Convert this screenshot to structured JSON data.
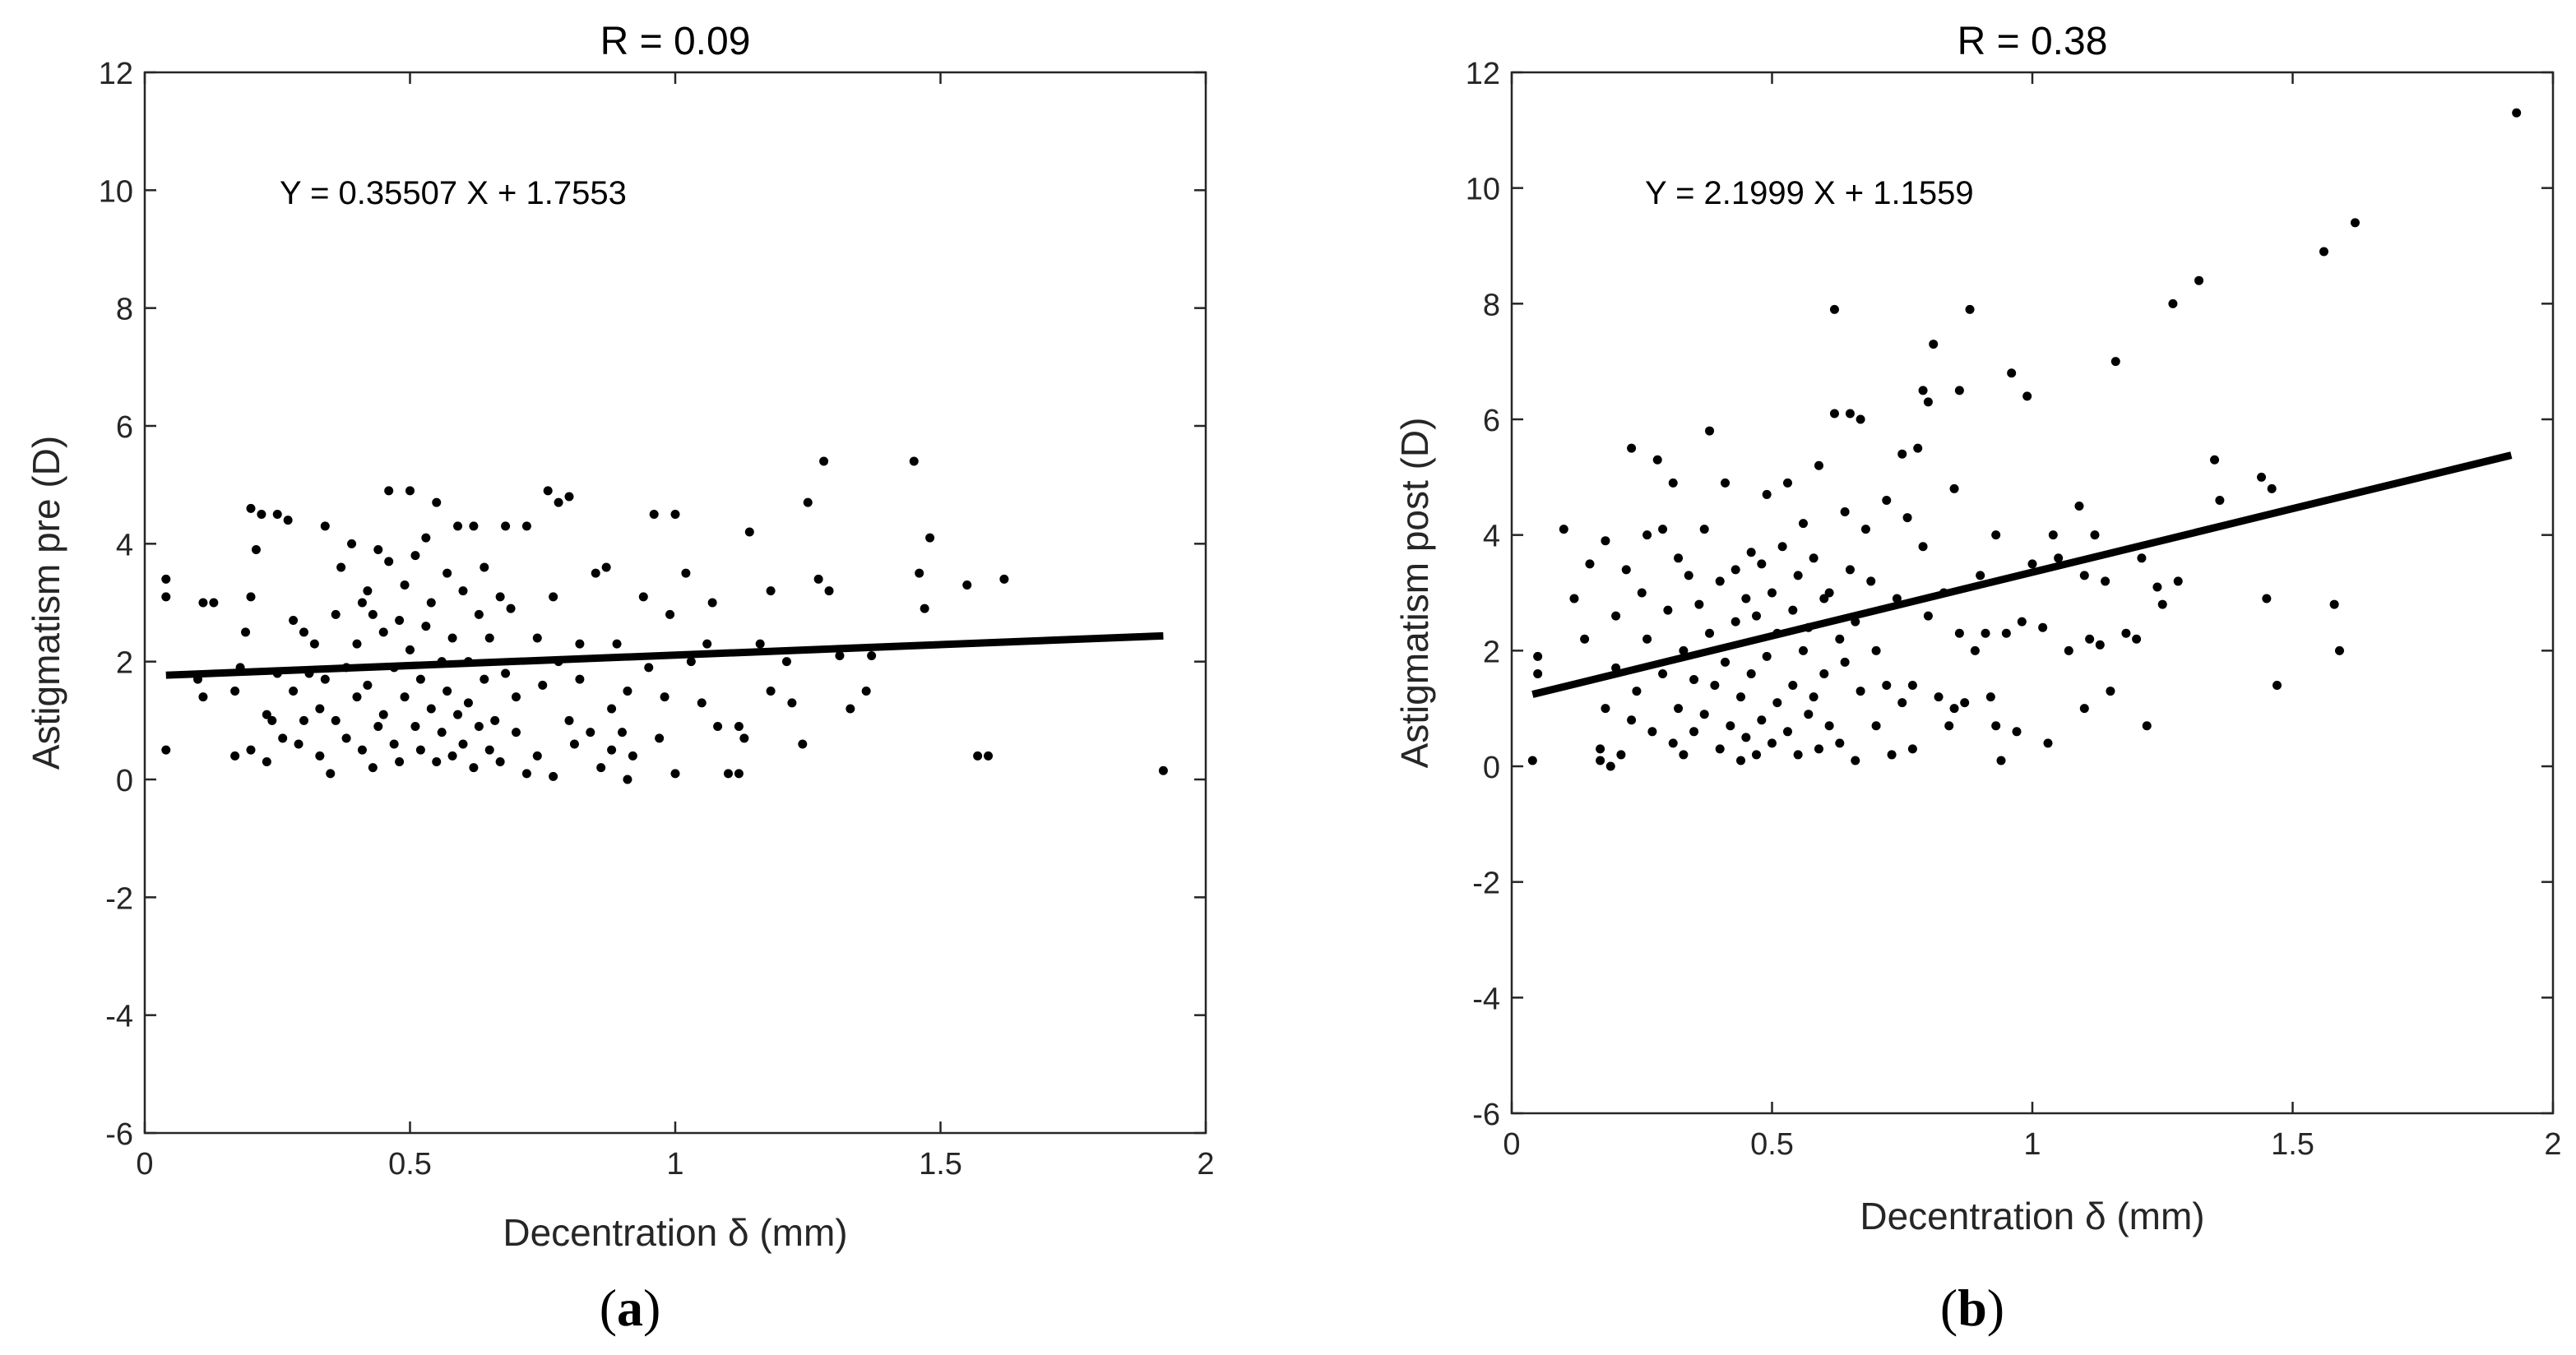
{
  "chart_data": [
    {
      "type": "scatter",
      "panel_label": {
        "open": "(",
        "letter": "a",
        "close": ")"
      },
      "title": "R = 0.09",
      "xlabel": "Decentration δ (mm)",
      "ylabel": "Astigmatism pre (D)",
      "xlim": [
        0,
        2
      ],
      "ylim": [
        -6,
        12
      ],
      "xticks": [
        0,
        0.5,
        1,
        1.5,
        2
      ],
      "xtick_labels": [
        "0",
        "0.5",
        "1",
        "1.5",
        "2"
      ],
      "yticks": [
        -6,
        -4,
        -2,
        0,
        2,
        4,
        6,
        8,
        10,
        12
      ],
      "ytick_labels": [
        "-6",
        "-4",
        "-2",
        "0",
        "2",
        "4",
        "6",
        "8",
        "10",
        "12"
      ],
      "grid": false,
      "annotation": "Y = 0.35507 X + 1.7553",
      "fit": {
        "slope": 0.35507,
        "intercept": 1.7553,
        "x_range": [
          0.04,
          1.92
        ]
      },
      "points": [
        [
          0.04,
          3.4
        ],
        [
          0.04,
          3.1
        ],
        [
          0.04,
          0.5
        ],
        [
          0.1,
          1.7
        ],
        [
          0.11,
          1.4
        ],
        [
          0.11,
          3.0
        ],
        [
          0.13,
          3.0
        ],
        [
          0.17,
          1.5
        ],
        [
          0.17,
          0.4
        ],
        [
          0.18,
          1.9
        ],
        [
          0.19,
          2.5
        ],
        [
          0.2,
          3.1
        ],
        [
          0.2,
          4.6
        ],
        [
          0.2,
          0.5
        ],
        [
          0.21,
          3.9
        ],
        [
          0.22,
          4.5
        ],
        [
          0.23,
          1.1
        ],
        [
          0.23,
          0.3
        ],
        [
          0.24,
          1.0
        ],
        [
          0.25,
          4.5
        ],
        [
          0.25,
          1.8
        ],
        [
          0.26,
          0.7
        ],
        [
          0.27,
          4.4
        ],
        [
          0.28,
          2.7
        ],
        [
          0.28,
          1.5
        ],
        [
          0.29,
          0.6
        ],
        [
          0.3,
          1.0
        ],
        [
          0.3,
          2.5
        ],
        [
          0.31,
          1.8
        ],
        [
          0.32,
          2.3
        ],
        [
          0.33,
          1.2
        ],
        [
          0.33,
          0.4
        ],
        [
          0.34,
          4.3
        ],
        [
          0.34,
          1.7
        ],
        [
          0.35,
          0.1
        ],
        [
          0.36,
          2.8
        ],
        [
          0.36,
          1.0
        ],
        [
          0.37,
          3.6
        ],
        [
          0.38,
          1.9
        ],
        [
          0.38,
          0.7
        ],
        [
          0.39,
          4.0
        ],
        [
          0.4,
          2.3
        ],
        [
          0.4,
          1.4
        ],
        [
          0.41,
          3.0
        ],
        [
          0.41,
          0.5
        ],
        [
          0.42,
          3.2
        ],
        [
          0.42,
          1.6
        ],
        [
          0.43,
          2.8
        ],
        [
          0.43,
          0.2
        ],
        [
          0.44,
          0.9
        ],
        [
          0.44,
          3.9
        ],
        [
          0.45,
          2.5
        ],
        [
          0.45,
          1.1
        ],
        [
          0.46,
          4.9
        ],
        [
          0.46,
          3.7
        ],
        [
          0.47,
          1.9
        ],
        [
          0.47,
          0.6
        ],
        [
          0.48,
          2.7
        ],
        [
          0.48,
          0.3
        ],
        [
          0.49,
          3.3
        ],
        [
          0.49,
          1.4
        ],
        [
          0.5,
          2.2
        ],
        [
          0.5,
          4.9
        ],
        [
          0.51,
          3.8
        ],
        [
          0.51,
          0.9
        ],
        [
          0.52,
          1.7
        ],
        [
          0.52,
          0.5
        ],
        [
          0.53,
          2.6
        ],
        [
          0.53,
          4.1
        ],
        [
          0.54,
          3.0
        ],
        [
          0.54,
          1.2
        ],
        [
          0.55,
          0.3
        ],
        [
          0.55,
          4.7
        ],
        [
          0.56,
          2.0
        ],
        [
          0.56,
          0.8
        ],
        [
          0.57,
          3.5
        ],
        [
          0.57,
          1.5
        ],
        [
          0.58,
          0.4
        ],
        [
          0.58,
          2.4
        ],
        [
          0.59,
          4.3
        ],
        [
          0.59,
          1.1
        ],
        [
          0.6,
          3.2
        ],
        [
          0.6,
          0.6
        ],
        [
          0.61,
          2.0
        ],
        [
          0.61,
          1.3
        ],
        [
          0.62,
          4.3
        ],
        [
          0.62,
          0.2
        ],
        [
          0.63,
          2.8
        ],
        [
          0.63,
          0.9
        ],
        [
          0.64,
          1.7
        ],
        [
          0.64,
          3.6
        ],
        [
          0.65,
          0.5
        ],
        [
          0.65,
          2.4
        ],
        [
          0.66,
          1.0
        ],
        [
          0.67,
          3.1
        ],
        [
          0.67,
          0.3
        ],
        [
          0.68,
          4.3
        ],
        [
          0.68,
          1.8
        ],
        [
          0.69,
          2.9
        ],
        [
          0.7,
          0.8
        ],
        [
          0.7,
          1.4
        ],
        [
          0.72,
          0.1
        ],
        [
          0.72,
          4.3
        ],
        [
          0.74,
          2.4
        ],
        [
          0.74,
          0.4
        ],
        [
          0.75,
          1.6
        ],
        [
          0.76,
          4.9
        ],
        [
          0.77,
          0.05
        ],
        [
          0.77,
          3.1
        ],
        [
          0.78,
          4.7
        ],
        [
          0.78,
          2.0
        ],
        [
          0.8,
          1.0
        ],
        [
          0.8,
          4.8
        ],
        [
          0.81,
          0.6
        ],
        [
          0.82,
          2.3
        ],
        [
          0.82,
          1.7
        ],
        [
          0.84,
          0.8
        ],
        [
          0.85,
          3.5
        ],
        [
          0.86,
          0.2
        ],
        [
          0.87,
          3.6
        ],
        [
          0.88,
          1.2
        ],
        [
          0.88,
          0.5
        ],
        [
          0.89,
          2.3
        ],
        [
          0.9,
          0.8
        ],
        [
          0.91,
          1.5
        ],
        [
          0.91,
          0.0
        ],
        [
          0.92,
          0.4
        ],
        [
          0.94,
          3.1
        ],
        [
          0.95,
          1.9
        ],
        [
          0.96,
          4.5
        ],
        [
          0.97,
          0.7
        ],
        [
          0.98,
          1.4
        ],
        [
          0.99,
          2.8
        ],
        [
          1.0,
          0.1
        ],
        [
          1.0,
          4.5
        ],
        [
          1.02,
          3.5
        ],
        [
          1.03,
          2.0
        ],
        [
          1.05,
          1.3
        ],
        [
          1.06,
          2.3
        ],
        [
          1.07,
          3.0
        ],
        [
          1.08,
          0.9
        ],
        [
          1.1,
          0.1
        ],
        [
          1.12,
          0.9
        ],
        [
          1.12,
          0.1
        ],
        [
          1.13,
          0.7
        ],
        [
          1.14,
          4.2
        ],
        [
          1.16,
          2.3
        ],
        [
          1.18,
          1.5
        ],
        [
          1.18,
          3.2
        ],
        [
          1.21,
          2.0
        ],
        [
          1.22,
          1.3
        ],
        [
          1.24,
          0.6
        ],
        [
          1.25,
          4.7
        ],
        [
          1.27,
          3.4
        ],
        [
          1.28,
          5.4
        ],
        [
          1.29,
          3.2
        ],
        [
          1.31,
          2.1
        ],
        [
          1.33,
          1.2
        ],
        [
          1.36,
          1.5
        ],
        [
          1.37,
          2.1
        ],
        [
          1.45,
          5.4
        ],
        [
          1.46,
          3.5
        ],
        [
          1.47,
          2.9
        ],
        [
          1.48,
          4.1
        ],
        [
          1.55,
          3.3
        ],
        [
          1.57,
          0.4
        ],
        [
          1.59,
          0.4
        ],
        [
          1.62,
          3.4
        ],
        [
          1.92,
          0.15
        ]
      ]
    },
    {
      "type": "scatter",
      "panel_label": {
        "open": "(",
        "letter": "b",
        "close": ")"
      },
      "title": "R = 0.38",
      "xlabel": "Decentration δ (mm)",
      "ylabel": "Astigmatism post (D)",
      "xlim": [
        0,
        2
      ],
      "ylim": [
        -6,
        12
      ],
      "xticks": [
        0,
        0.5,
        1,
        1.5,
        2
      ],
      "xtick_labels": [
        "0",
        "0.5",
        "1",
        "1.5",
        "2"
      ],
      "yticks": [
        -6,
        -4,
        -2,
        0,
        2,
        4,
        6,
        8,
        10,
        12
      ],
      "ytick_labels": [
        "-6",
        "-4",
        "-2",
        "0",
        "2",
        "4",
        "6",
        "8",
        "10",
        "12"
      ],
      "grid": false,
      "annotation": "Y = 2.1999 X + 1.1559",
      "fit": {
        "slope": 2.1999,
        "intercept": 1.1559,
        "x_range": [
          0.04,
          1.92
        ]
      },
      "points": [
        [
          0.04,
          0.1
        ],
        [
          0.05,
          1.6
        ],
        [
          0.05,
          1.9
        ],
        [
          0.1,
          4.1
        ],
        [
          0.12,
          2.9
        ],
        [
          0.14,
          2.2
        ],
        [
          0.15,
          3.5
        ],
        [
          0.17,
          0.1
        ],
        [
          0.17,
          0.3
        ],
        [
          0.18,
          3.9
        ],
        [
          0.18,
          1.0
        ],
        [
          0.19,
          0.0
        ],
        [
          0.2,
          2.6
        ],
        [
          0.2,
          1.7
        ],
        [
          0.21,
          0.2
        ],
        [
          0.22,
          3.4
        ],
        [
          0.23,
          5.5
        ],
        [
          0.23,
          0.8
        ],
        [
          0.24,
          1.3
        ],
        [
          0.25,
          3.0
        ],
        [
          0.26,
          4.0
        ],
        [
          0.26,
          2.2
        ],
        [
          0.27,
          0.6
        ],
        [
          0.28,
          5.3
        ],
        [
          0.29,
          4.1
        ],
        [
          0.29,
          1.6
        ],
        [
          0.3,
          2.7
        ],
        [
          0.31,
          0.4
        ],
        [
          0.31,
          4.9
        ],
        [
          0.32,
          1.0
        ],
        [
          0.32,
          3.6
        ],
        [
          0.33,
          0.2
        ],
        [
          0.33,
          2.0
        ],
        [
          0.34,
          3.3
        ],
        [
          0.35,
          1.5
        ],
        [
          0.35,
          0.6
        ],
        [
          0.36,
          2.8
        ],
        [
          0.37,
          4.1
        ],
        [
          0.37,
          0.9
        ],
        [
          0.38,
          2.3
        ],
        [
          0.38,
          5.8
        ],
        [
          0.39,
          1.4
        ],
        [
          0.4,
          0.3
        ],
        [
          0.4,
          3.2
        ],
        [
          0.41,
          4.9
        ],
        [
          0.41,
          1.8
        ],
        [
          0.42,
          0.7
        ],
        [
          0.43,
          2.5
        ],
        [
          0.43,
          3.4
        ],
        [
          0.44,
          0.1
        ],
        [
          0.44,
          1.2
        ],
        [
          0.45,
          2.9
        ],
        [
          0.45,
          0.5
        ],
        [
          0.46,
          3.7
        ],
        [
          0.46,
          1.6
        ],
        [
          0.47,
          0.2
        ],
        [
          0.47,
          2.6
        ],
        [
          0.48,
          3.5
        ],
        [
          0.48,
          0.8
        ],
        [
          0.49,
          1.9
        ],
        [
          0.49,
          4.7
        ],
        [
          0.5,
          3.0
        ],
        [
          0.5,
          0.4
        ],
        [
          0.51,
          2.3
        ],
        [
          0.51,
          1.1
        ],
        [
          0.52,
          3.8
        ],
        [
          0.53,
          0.6
        ],
        [
          0.53,
          4.9
        ],
        [
          0.54,
          2.7
        ],
        [
          0.54,
          1.4
        ],
        [
          0.55,
          3.3
        ],
        [
          0.55,
          0.2
        ],
        [
          0.56,
          2.0
        ],
        [
          0.56,
          4.2
        ],
        [
          0.57,
          0.9
        ],
        [
          0.57,
          2.4
        ],
        [
          0.58,
          3.6
        ],
        [
          0.58,
          1.2
        ],
        [
          0.59,
          0.3
        ],
        [
          0.59,
          5.2
        ],
        [
          0.6,
          2.9
        ],
        [
          0.6,
          1.6
        ],
        [
          0.61,
          0.7
        ],
        [
          0.61,
          3.0
        ],
        [
          0.62,
          7.9
        ],
        [
          0.62,
          6.1
        ],
        [
          0.63,
          2.2
        ],
        [
          0.63,
          0.4
        ],
        [
          0.64,
          4.4
        ],
        [
          0.64,
          1.8
        ],
        [
          0.65,
          6.1
        ],
        [
          0.65,
          3.4
        ],
        [
          0.66,
          0.1
        ],
        [
          0.66,
          2.5
        ],
        [
          0.67,
          6.0
        ],
        [
          0.67,
          1.3
        ],
        [
          0.68,
          4.1
        ],
        [
          0.69,
          3.2
        ],
        [
          0.7,
          0.7
        ],
        [
          0.7,
          2.0
        ],
        [
          0.72,
          1.4
        ],
        [
          0.72,
          4.6
        ],
        [
          0.73,
          0.2
        ],
        [
          0.74,
          2.9
        ],
        [
          0.75,
          5.4
        ],
        [
          0.75,
          1.1
        ],
        [
          0.76,
          4.3
        ],
        [
          0.77,
          1.4
        ],
        [
          0.77,
          0.3
        ],
        [
          0.78,
          5.5
        ],
        [
          0.79,
          6.5
        ],
        [
          0.79,
          3.8
        ],
        [
          0.8,
          6.3
        ],
        [
          0.8,
          2.6
        ],
        [
          0.81,
          7.3
        ],
        [
          0.82,
          1.2
        ],
        [
          0.83,
          3.0
        ],
        [
          0.84,
          0.7
        ],
        [
          0.85,
          4.8
        ],
        [
          0.85,
          1.0
        ],
        [
          0.86,
          6.5
        ],
        [
          0.86,
          2.3
        ],
        [
          0.87,
          1.1
        ],
        [
          0.88,
          7.9
        ],
        [
          0.89,
          2.0
        ],
        [
          0.9,
          3.3
        ],
        [
          0.91,
          2.3
        ],
        [
          0.92,
          1.2
        ],
        [
          0.93,
          4.0
        ],
        [
          0.93,
          0.7
        ],
        [
          0.94,
          0.1
        ],
        [
          0.95,
          2.3
        ],
        [
          0.96,
          6.8
        ],
        [
          0.97,
          0.6
        ],
        [
          0.98,
          2.5
        ],
        [
          0.99,
          6.4
        ],
        [
          1.0,
          3.5
        ],
        [
          1.02,
          2.4
        ],
        [
          1.03,
          0.4
        ],
        [
          1.04,
          4.0
        ],
        [
          1.05,
          3.6
        ],
        [
          1.07,
          2.0
        ],
        [
          1.09,
          4.5
        ],
        [
          1.1,
          1.0
        ],
        [
          1.1,
          3.3
        ],
        [
          1.11,
          2.2
        ],
        [
          1.12,
          4.0
        ],
        [
          1.13,
          2.1
        ],
        [
          1.14,
          3.2
        ],
        [
          1.15,
          1.3
        ],
        [
          1.16,
          7.0
        ],
        [
          1.18,
          2.3
        ],
        [
          1.2,
          2.2
        ],
        [
          1.21,
          3.6
        ],
        [
          1.22,
          0.7
        ],
        [
          1.24,
          3.1
        ],
        [
          1.25,
          2.8
        ],
        [
          1.27,
          8.0
        ],
        [
          1.28,
          3.2
        ],
        [
          1.32,
          8.4
        ],
        [
          1.35,
          5.3
        ],
        [
          1.36,
          4.6
        ],
        [
          1.44,
          5.0
        ],
        [
          1.45,
          2.9
        ],
        [
          1.46,
          4.8
        ],
        [
          1.47,
          1.4
        ],
        [
          1.56,
          8.9
        ],
        [
          1.58,
          2.8
        ],
        [
          1.59,
          2.0
        ],
        [
          1.62,
          9.4
        ],
        [
          1.93,
          11.3
        ]
      ]
    }
  ]
}
